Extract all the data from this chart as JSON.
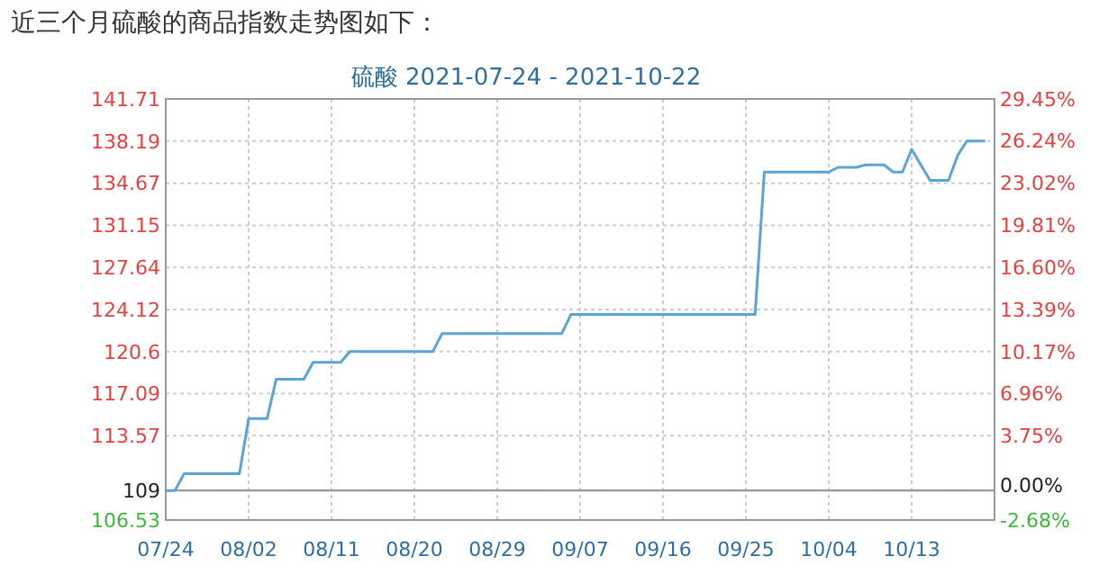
{
  "chart_data": {
    "type": "line",
    "title": "近三个月硫酸的商品指数走势图如下：",
    "subtitle": "硫酸 2021-07-24 - 2021-10-22",
    "x": [
      "2021-07-24",
      "2021-07-25",
      "2021-07-26",
      "2021-08-01",
      "2021-08-02",
      "2021-08-04",
      "2021-08-05",
      "2021-08-08",
      "2021-08-09",
      "2021-08-12",
      "2021-08-13",
      "2021-08-22",
      "2021-08-23",
      "2021-09-05",
      "2021-09-06",
      "2021-09-26",
      "2021-09-27",
      "2021-10-04",
      "2021-10-05",
      "2021-10-07",
      "2021-10-08",
      "2021-10-10",
      "2021-10-11",
      "2021-10-12",
      "2021-10-13",
      "2021-10-15",
      "2021-10-17",
      "2021-10-18",
      "2021-10-19",
      "2021-10-21"
    ],
    "series": [
      {
        "color": "#5aa5d6",
        "values": [
          109,
          109,
          110.4,
          110.4,
          115.0,
          115.0,
          118.3,
          118.3,
          119.7,
          119.7,
          120.6,
          120.6,
          122.1,
          122.1,
          123.7,
          123.7,
          135.6,
          135.6,
          136.0,
          136.0,
          136.2,
          136.2,
          135.6,
          135.6,
          137.5,
          134.9,
          134.9,
          137.0,
          138.2,
          138.2
        ]
      }
    ],
    "xlim": [
      "2021-07-24",
      "2021-10-22"
    ],
    "xticks": [
      {
        "value": "2021-07-24",
        "label": "07/24"
      },
      {
        "value": "2021-08-02",
        "label": "08/02"
      },
      {
        "value": "2021-08-11",
        "label": "08/11"
      },
      {
        "value": "2021-08-20",
        "label": "08/20"
      },
      {
        "value": "2021-08-29",
        "label": "08/29"
      },
      {
        "value": "2021-09-07",
        "label": "09/07"
      },
      {
        "value": "2021-09-16",
        "label": "09/16"
      },
      {
        "value": "2021-09-25",
        "label": "09/25"
      },
      {
        "value": "2021-10-04",
        "label": "10/04"
      },
      {
        "value": "2021-10-13",
        "label": "10/13"
      }
    ],
    "ylim": [
      106.53,
      141.71
    ],
    "yticks": [
      106.53,
      109,
      113.57,
      117.09,
      120.6,
      124.12,
      127.64,
      131.15,
      134.67,
      138.19,
      141.71
    ],
    "y2lim": [
      -2.68,
      29.45
    ],
    "y2ticks": [
      {
        "value": -2.68,
        "label": "-2.68%"
      },
      {
        "value": 0,
        "label": "0.00%"
      },
      {
        "value": 3.75,
        "label": "3.75%"
      },
      {
        "value": 6.96,
        "label": "6.96%"
      },
      {
        "value": 10.17,
        "label": "10.17%"
      },
      {
        "value": 13.39,
        "label": "13.39%"
      },
      {
        "value": 16.6,
        "label": "16.60%"
      },
      {
        "value": 19.81,
        "label": "19.81%"
      },
      {
        "value": 23.02,
        "label": "23.02%"
      },
      {
        "value": 26.24,
        "label": "26.24%"
      },
      {
        "value": 29.45,
        "label": "29.45%"
      }
    ],
    "ref_lines": [
      {
        "axis": "y",
        "value": 109,
        "color": "#999999"
      }
    ],
    "grid": true,
    "marker": "none",
    "line_style": "solid"
  }
}
